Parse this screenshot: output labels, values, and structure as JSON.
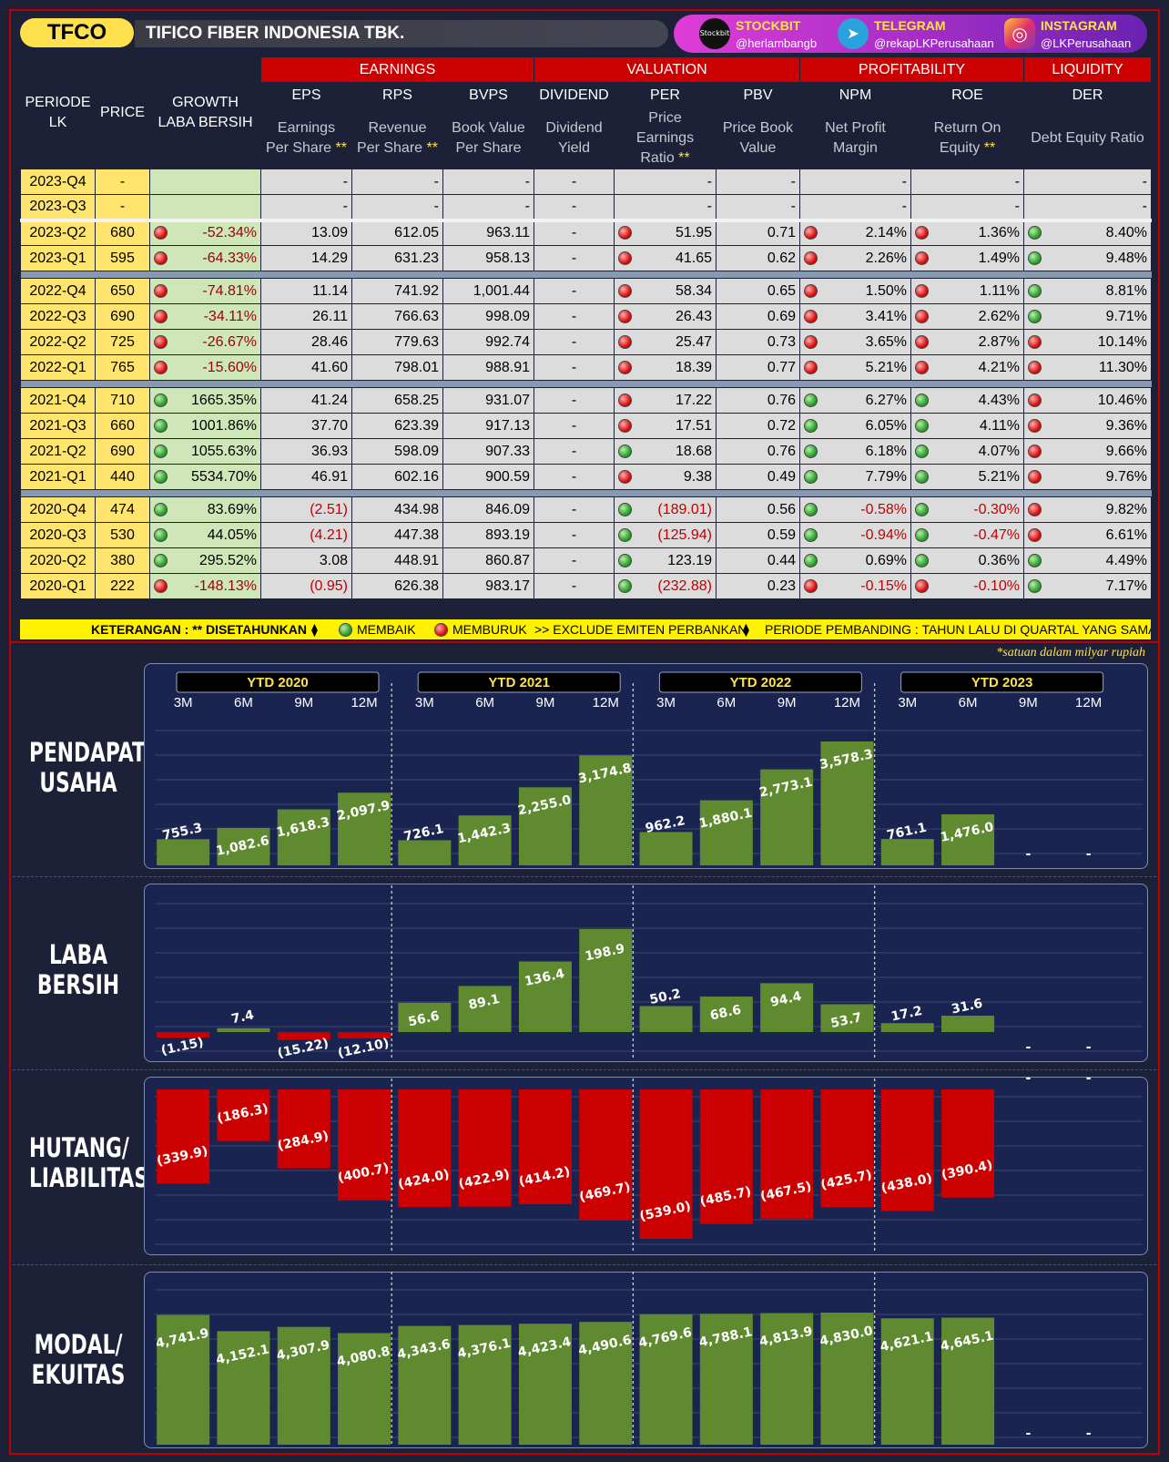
{
  "header": {
    "ticker": "TFCO",
    "company": "TIFICO FIBER INDONESIA TBK."
  },
  "social": [
    {
      "name": "STOCKBIT",
      "handle": "@herlambangb",
      "icon": "stockbit-icon",
      "icon_text": "Stockbit"
    },
    {
      "name": "TELEGRAM",
      "handle": "@rekapLKPerusahaan",
      "icon": "telegram-icon",
      "icon_text": "➤"
    },
    {
      "name": "INSTAGRAM",
      "handle": "@LKPerusahaan",
      "icon": "instagram-icon",
      "icon_text": "◎"
    }
  ],
  "table": {
    "groups": [
      "EARNINGS",
      "VALUATION",
      "PROFITABILITY",
      "LIQUIDITY"
    ],
    "col_periode": "PERIODE LK",
    "col_price": "PRICE",
    "col_growth": "GROWTH LABA BERSIH",
    "cols": [
      "EPS",
      "RPS",
      "BVPS",
      "DIVIDEND",
      "PER",
      "PBV",
      "NPM",
      "ROE",
      "DER"
    ],
    "desc": [
      "Earnings Per Share",
      "Revenue Per Share",
      "Book Value Per Share",
      "Dividend Yield",
      "Price Earnings Ratio",
      "Price Book Value",
      "Net Profit Margin",
      "Return On Equity",
      "Debt Equity Ratio"
    ],
    "desc_ast": [
      "**",
      "**",
      "",
      "",
      "**",
      "",
      "",
      "**",
      ""
    ],
    "rows": [
      [
        "2023-Q4",
        "-",
        "",
        "-",
        "-",
        "-",
        "-",
        "-",
        "-",
        "-",
        "-",
        "-",
        "",
        "",
        "",
        "",
        ""
      ],
      [
        "2023-Q3",
        "-",
        "",
        "-",
        "-",
        "-",
        "-",
        "-",
        "-",
        "-",
        "-",
        "-",
        "",
        "",
        "",
        "",
        ""
      ],
      [
        "2023-Q2",
        "680",
        "-52.34%",
        "13.09",
        "612.05",
        "963.11",
        "-",
        "51.95",
        "0.71",
        "2.14%",
        "1.36%",
        "8.40%",
        "r",
        "r",
        "r",
        "r",
        "g"
      ],
      [
        "2023-Q1",
        "595",
        "-64.33%",
        "14.29",
        "631.23",
        "958.13",
        "-",
        "41.65",
        "0.62",
        "2.26%",
        "1.49%",
        "9.48%",
        "r",
        "r",
        "r",
        "r",
        "g"
      ],
      [
        "2022-Q4",
        "650",
        "-74.81%",
        "11.14",
        "741.92",
        "1,001.44",
        "-",
        "58.34",
        "0.65",
        "1.50%",
        "1.11%",
        "8.81%",
        "r",
        "r",
        "r",
        "r",
        "g"
      ],
      [
        "2022-Q3",
        "690",
        "-34.11%",
        "26.11",
        "766.63",
        "998.09",
        "-",
        "26.43",
        "0.69",
        "3.41%",
        "2.62%",
        "9.71%",
        "r",
        "r",
        "r",
        "r",
        "g"
      ],
      [
        "2022-Q2",
        "725",
        "-26.67%",
        "28.46",
        "779.63",
        "992.74",
        "-",
        "25.47",
        "0.73",
        "3.65%",
        "2.87%",
        "10.14%",
        "r",
        "r",
        "r",
        "r",
        "r"
      ],
      [
        "2022-Q1",
        "765",
        "-15.60%",
        "41.60",
        "798.01",
        "988.91",
        "-",
        "18.39",
        "0.77",
        "5.21%",
        "4.21%",
        "11.30%",
        "r",
        "r",
        "r",
        "r",
        "r"
      ],
      [
        "2021-Q4",
        "710",
        "1665.35%",
        "41.24",
        "658.25",
        "931.07",
        "-",
        "17.22",
        "0.76",
        "6.27%",
        "4.43%",
        "10.46%",
        "g",
        "r",
        "g",
        "g",
        "r"
      ],
      [
        "2021-Q3",
        "660",
        "1001.86%",
        "37.70",
        "623.39",
        "917.13",
        "-",
        "17.51",
        "0.72",
        "6.05%",
        "4.11%",
        "9.36%",
        "g",
        "r",
        "g",
        "g",
        "r"
      ],
      [
        "2021-Q2",
        "690",
        "1055.63%",
        "36.93",
        "598.09",
        "907.33",
        "-",
        "18.68",
        "0.76",
        "6.18%",
        "4.07%",
        "9.66%",
        "g",
        "g",
        "g",
        "g",
        "r"
      ],
      [
        "2021-Q1",
        "440",
        "5534.70%",
        "46.91",
        "602.16",
        "900.59",
        "-",
        "9.38",
        "0.49",
        "7.79%",
        "5.21%",
        "9.76%",
        "g",
        "r",
        "g",
        "g",
        "r"
      ],
      [
        "2020-Q4",
        "474",
        "83.69%",
        "(2.51)",
        "434.98",
        "846.09",
        "-",
        "(189.01)",
        "0.56",
        "-0.58%",
        "-0.30%",
        "9.82%",
        "g",
        "g",
        "g",
        "g",
        "r"
      ],
      [
        "2020-Q3",
        "530",
        "44.05%",
        "(4.21)",
        "447.38",
        "893.19",
        "-",
        "(125.94)",
        "0.59",
        "-0.94%",
        "-0.47%",
        "6.61%",
        "g",
        "g",
        "g",
        "g",
        "r"
      ],
      [
        "2020-Q2",
        "380",
        "295.52%",
        "3.08",
        "448.91",
        "860.87",
        "-",
        "123.19",
        "0.44",
        "0.69%",
        "0.36%",
        "4.49%",
        "g",
        "g",
        "g",
        "g",
        "g"
      ],
      [
        "2020-Q1",
        "222",
        "-148.13%",
        "(0.95)",
        "626.38",
        "983.17",
        "-",
        "(232.88)",
        "0.23",
        "-0.15%",
        "-0.10%",
        "7.17%",
        "r",
        "g",
        "r",
        "r",
        "g"
      ]
    ]
  },
  "note": {
    "a": "KETERANGAN : ** DISETAHUNKAN",
    "b": "MEMBAIK",
    "c": "MEMBURUK",
    "d": ">> EXCLUDE EMITEN PERBANKAN",
    "e": "PERIODE PEMBANDING : TAHUN LALU DI QUARTAL YANG SAMA"
  },
  "satuan": "*satuan dalam milyar rupiah",
  "colors": {
    "pos_bar": "#5f8a30",
    "neg_bar": "#cc0000"
  },
  "chart_data": {
    "type": "bar",
    "years": [
      "YTD 2020",
      "YTD 2021",
      "YTD 2022",
      "YTD 2023"
    ],
    "months": [
      "3M",
      "6M",
      "9M",
      "12M"
    ],
    "series": [
      {
        "name": "PENDAPATAN USAHA",
        "labels": [
          "755.3",
          "1,082.6",
          "1,618.3",
          "2,097.9",
          "726.1",
          "1,442.3",
          "2,255.0",
          "3,174.8",
          "962.2",
          "1,880.1",
          "2,773.1",
          "3,578.3",
          "761.1",
          "1,476.0",
          "-",
          "-"
        ],
        "values": [
          755.3,
          1082.6,
          1618.3,
          2097.9,
          726.1,
          1442.3,
          2255.0,
          3174.8,
          962.2,
          1880.1,
          2773.1,
          3578.3,
          761.1,
          1476.0,
          null,
          null
        ]
      },
      {
        "name": "LABA BERSIH",
        "labels": [
          "(1.15)",
          "7.4",
          "(15.22)",
          "(12.10)",
          "56.6",
          "89.1",
          "136.4",
          "198.9",
          "50.2",
          "68.6",
          "94.4",
          "53.7",
          "17.2",
          "31.6",
          "-",
          "-"
        ],
        "values": [
          -1.15,
          7.4,
          -15.22,
          -12.1,
          56.6,
          89.1,
          136.4,
          198.9,
          50.2,
          68.6,
          94.4,
          53.7,
          17.2,
          31.6,
          null,
          null
        ]
      },
      {
        "name": "HUTANG/ LIABILITAS",
        "labels": [
          "(339.9)",
          "(186.3)",
          "(284.9)",
          "(400.7)",
          "(424.0)",
          "(422.9)",
          "(414.2)",
          "(469.7)",
          "(539.0)",
          "(485.7)",
          "(467.5)",
          "(425.7)",
          "(438.0)",
          "(390.4)",
          "-",
          "-"
        ],
        "values": [
          -339.9,
          -186.3,
          -284.9,
          -400.7,
          -424.0,
          -422.9,
          -414.2,
          -469.7,
          -539.0,
          -485.7,
          -467.5,
          -425.7,
          -438.0,
          -390.4,
          null,
          null
        ]
      },
      {
        "name": "MODAL/ EKUITAS",
        "labels": [
          "4,741.9",
          "4,152.1",
          "4,307.9",
          "4,080.8",
          "4,343.6",
          "4,376.1",
          "4,423.4",
          "4,490.6",
          "4,769.6",
          "4,788.1",
          "4,813.9",
          "4,830.0",
          "4,621.1",
          "4,645.1",
          "-",
          "-"
        ],
        "values": [
          4741.9,
          4152.1,
          4307.9,
          4080.8,
          4343.6,
          4376.1,
          4423.4,
          4490.6,
          4769.6,
          4788.1,
          4813.9,
          4830.0,
          4621.1,
          4645.1,
          null,
          null
        ]
      }
    ]
  }
}
